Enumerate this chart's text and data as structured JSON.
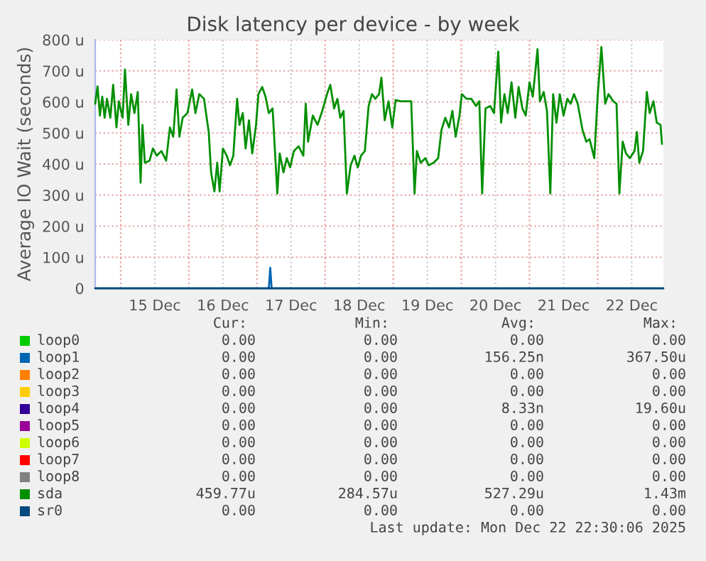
{
  "chart_data": {
    "type": "line",
    "title": "Disk latency per device - by week",
    "ylabel": "Average IO Wait (seconds)",
    "xlim": [
      "2025-12-14T15:00",
      "2025-12-22T23:10"
    ],
    "xticks": [
      {
        "value": "2025-12-15T00:00",
        "label": null
      },
      {
        "value": "2025-12-15T12:00",
        "label": "15 Dec"
      },
      {
        "value": "2025-12-16T00:00",
        "label": null
      },
      {
        "value": "2025-12-16T12:00",
        "label": "16 Dec"
      },
      {
        "value": "2025-12-17T00:00",
        "label": null
      },
      {
        "value": "2025-12-17T12:00",
        "label": "17 Dec"
      },
      {
        "value": "2025-12-18T00:00",
        "label": null
      },
      {
        "value": "2025-12-18T12:00",
        "label": "18 Dec"
      },
      {
        "value": "2025-12-19T00:00",
        "label": null
      },
      {
        "value": "2025-12-19T12:00",
        "label": "19 Dec"
      },
      {
        "value": "2025-12-20T00:00",
        "label": null
      },
      {
        "value": "2025-12-20T12:00",
        "label": "20 Dec"
      },
      {
        "value": "2025-12-21T00:00",
        "label": null
      },
      {
        "value": "2025-12-21T12:00",
        "label": "21 Dec"
      },
      {
        "value": "2025-12-22T00:00",
        "label": null
      },
      {
        "value": "2025-12-22T12:00",
        "label": "22 Dec"
      }
    ],
    "ylim": [
      0,
      800
    ],
    "yticks": [
      0,
      {
        "value": 100,
        "label": "100 u"
      },
      {
        "value": 200,
        "label": "200 u"
      },
      {
        "value": 300,
        "label": "300 u"
      },
      {
        "value": 400,
        "label": "400 u"
      },
      {
        "value": 500,
        "label": "500 u"
      },
      {
        "value": 600,
        "label": "600 u"
      },
      {
        "value": 700,
        "label": "700 u"
      },
      {
        "value": 800,
        "label": "800 u"
      }
    ],
    "grid": true,
    "legend": "bottom",
    "marker": "none",
    "line_style": "solid",
    "series": [
      {
        "name": "loop0",
        "color": "#00cc00"
      },
      {
        "name": "loop1",
        "color": "#0066b3",
        "x": [
          "2025-12-17T04:10",
          "2025-12-17T04:40",
          "2025-12-17T05:10"
        ],
        "values": [
          0,
          66,
          0
        ]
      },
      {
        "name": "loop2",
        "color": "#ff8000"
      },
      {
        "name": "loop3",
        "color": "#ffcc00"
      },
      {
        "name": "loop4",
        "color": "#330099"
      },
      {
        "name": "loop5",
        "color": "#990099"
      },
      {
        "name": "loop6",
        "color": "#ccff00"
      },
      {
        "name": "loop7",
        "color": "#ff0000"
      },
      {
        "name": "loop8",
        "color": "#808080"
      },
      {
        "name": "sda",
        "color": "#008f00",
        "x": [
          "2025-12-14T15:00",
          "2025-12-14T15:50",
          "2025-12-14T16:40",
          "2025-12-14T17:30",
          "2025-12-14T18:20",
          "2025-12-14T19:10",
          "2025-12-14T20:20",
          "2025-12-14T21:20",
          "2025-12-14T22:30",
          "2025-12-14T23:20",
          "2025-12-15T00:40",
          "2025-12-15T01:30",
          "2025-12-15T02:40",
          "2025-12-15T03:40",
          "2025-12-15T04:50",
          "2025-12-15T06:00",
          "2025-12-15T07:00",
          "2025-12-15T07:40",
          "2025-12-15T08:30",
          "2025-12-15T10:10",
          "2025-12-15T11:20",
          "2025-12-15T12:40",
          "2025-12-15T14:20",
          "2025-12-15T16:00",
          "2025-12-15T17:20",
          "2025-12-15T18:30",
          "2025-12-15T19:40",
          "2025-12-15T20:40",
          "2025-12-15T21:50",
          "2025-12-15T23:30",
          "2025-12-16T01:10",
          "2025-12-16T02:20",
          "2025-12-16T03:40",
          "2025-12-16T05:20",
          "2025-12-16T07:00",
          "2025-12-16T07:50",
          "2025-12-16T09:00",
          "2025-12-16T10:00",
          "2025-12-16T10:50",
          "2025-12-16T12:00",
          "2025-12-16T13:20",
          "2025-12-16T14:30",
          "2025-12-16T15:40",
          "2025-12-16T17:00",
          "2025-12-16T17:50",
          "2025-12-16T19:00",
          "2025-12-16T20:00",
          "2025-12-16T21:10",
          "2025-12-16T22:20",
          "2025-12-16T23:40",
          "2025-12-17T00:30",
          "2025-12-17T01:50",
          "2025-12-17T03:00",
          "2025-12-17T04:10",
          "2025-12-17T05:30",
          "2025-12-17T07:10",
          "2025-12-17T08:00",
          "2025-12-17T09:20",
          "2025-12-17T10:30",
          "2025-12-17T11:40",
          "2025-12-17T13:00",
          "2025-12-17T14:40",
          "2025-12-17T16:20",
          "2025-12-17T17:10",
          "2025-12-17T18:00",
          "2025-12-17T19:40",
          "2025-12-17T21:20",
          "2025-12-17T23:00",
          "2025-12-18T00:40",
          "2025-12-18T01:50",
          "2025-12-18T03:10",
          "2025-12-18T04:20",
          "2025-12-18T05:20",
          "2025-12-18T06:30",
          "2025-12-18T07:40",
          "2025-12-18T09:00",
          "2025-12-18T10:20",
          "2025-12-18T11:30",
          "2025-12-18T12:40",
          "2025-12-18T14:00",
          "2025-12-18T15:20",
          "2025-12-18T16:30",
          "2025-12-18T17:40",
          "2025-12-18T19:00",
          "2025-12-18T19:50",
          "2025-12-18T21:00",
          "2025-12-18T22:20",
          "2025-12-18T23:40",
          "2025-12-19T00:50",
          "2025-12-19T02:30",
          "2025-12-19T04:40",
          "2025-12-19T06:20",
          "2025-12-19T07:30",
          "2025-12-19T08:20",
          "2025-12-19T09:40",
          "2025-12-19T11:20",
          "2025-12-19T12:30",
          "2025-12-19T14:10",
          "2025-12-19T15:50",
          "2025-12-19T17:00",
          "2025-12-19T18:20",
          "2025-12-19T19:40",
          "2025-12-19T20:50",
          "2025-12-19T22:00",
          "2025-12-19T23:20",
          "2025-12-20T00:10",
          "2025-12-20T01:50",
          "2025-12-20T03:30",
          "2025-12-20T05:10",
          "2025-12-20T06:20",
          "2025-12-20T07:20",
          "2025-12-20T08:30",
          "2025-12-20T10:10",
          "2025-12-20T11:30",
          "2025-12-20T13:00",
          "2025-12-20T14:00",
          "2025-12-20T15:10",
          "2025-12-20T16:20",
          "2025-12-20T17:40",
          "2025-12-20T19:00",
          "2025-12-20T20:10",
          "2025-12-20T21:30",
          "2025-12-20T22:40",
          "2025-12-21T00:00",
          "2025-12-21T01:10",
          "2025-12-21T02:50",
          "2025-12-21T03:40",
          "2025-12-21T05:00",
          "2025-12-21T06:10",
          "2025-12-21T07:20",
          "2025-12-21T08:20",
          "2025-12-21T09:30",
          "2025-12-21T10:40",
          "2025-12-21T12:00",
          "2025-12-21T13:20",
          "2025-12-21T14:30",
          "2025-12-21T15:40",
          "2025-12-21T17:00",
          "2025-12-21T18:40",
          "2025-12-21T20:00",
          "2025-12-21T21:10",
          "2025-12-21T22:50",
          "2025-12-22T00:00",
          "2025-12-22T01:20",
          "2025-12-22T02:40",
          "2025-12-22T03:50",
          "2025-12-22T05:30",
          "2025-12-22T06:40",
          "2025-12-22T07:40",
          "2025-12-22T08:50",
          "2025-12-22T10:00",
          "2025-12-22T11:20",
          "2025-12-22T13:00",
          "2025-12-22T13:50",
          "2025-12-22T14:40",
          "2025-12-22T16:00",
          "2025-12-22T17:20",
          "2025-12-22T18:20",
          "2025-12-22T19:40",
          "2025-12-22T20:50",
          "2025-12-22T22:10",
          "2025-12-22T22:40"
        ],
        "values": [
          594,
          650,
          556,
          617,
          549,
          610,
          549,
          655,
          518,
          602,
          549,
          704,
          526,
          625,
          564,
          632,
          340,
          526,
          404,
          411,
          450,
          427,
          442,
          411,
          518,
          488,
          640,
          488,
          549,
          564,
          640,
          564,
          625,
          610,
          503,
          373,
          312,
          404,
          312,
          450,
          427,
          396,
          427,
          610,
          526,
          564,
          450,
          541,
          434,
          526,
          625,
          648,
          617,
          564,
          579,
          305,
          434,
          373,
          419,
          389,
          442,
          457,
          427,
          594,
          472,
          556,
          526,
          571,
          625,
          655,
          579,
          610,
          549,
          571,
          305,
          396,
          427,
          389,
          427,
          442,
          587,
          625,
          610,
          625,
          678,
          541,
          602,
          518,
          606,
          602,
          602,
          602,
          305,
          442,
          404,
          419,
          396,
          404,
          419,
          510,
          549,
          518,
          571,
          488,
          556,
          625,
          610,
          610,
          587,
          602,
          305,
          579,
          587,
          564,
          762,
          533,
          625,
          564,
          663,
          549,
          648,
          579,
          556,
          663,
          617,
          770,
          602,
          632,
          571,
          305,
          625,
          533,
          625,
          556,
          610,
          594,
          625,
          594,
          510,
          472,
          480,
          419,
          617,
          777,
          594,
          625,
          602,
          594,
          305,
          472,
          434,
          419,
          442,
          503,
          404,
          442,
          632,
          564,
          602,
          533,
          526,
          465
        ]
      },
      {
        "name": "sr0",
        "color": "#00487d",
        "x": [
          "2025-12-14T15:00",
          "2025-12-22T23:10"
        ],
        "values": [
          0,
          0
        ]
      }
    ],
    "annotations": [
      "Cur:",
      "Min:",
      "Avg:",
      "Max:",
      "0.00",
      "0.00",
      "0.00",
      "0.00",
      "0.00",
      "0.00",
      "156.25n",
      "367.50u",
      "0.00",
      "0.00",
      "0.00",
      "0.00",
      "0.00",
      "0.00",
      "0.00",
      "0.00",
      "0.00",
      "0.00",
      "8.33n",
      "19.60u",
      "0.00",
      "0.00",
      "0.00",
      "0.00",
      "0.00",
      "0.00",
      "0.00",
      "0.00",
      "0.00",
      "0.00",
      "0.00",
      "0.00",
      "0.00",
      "0.00",
      "0.00",
      "0.00",
      "459.77u",
      "284.57u",
      "527.29u",
      "1.43m",
      "0.00",
      "0.00",
      "0.00",
      "0.00",
      "Last update: Mon Dec 22 22:30:06 2025"
    ]
  }
}
